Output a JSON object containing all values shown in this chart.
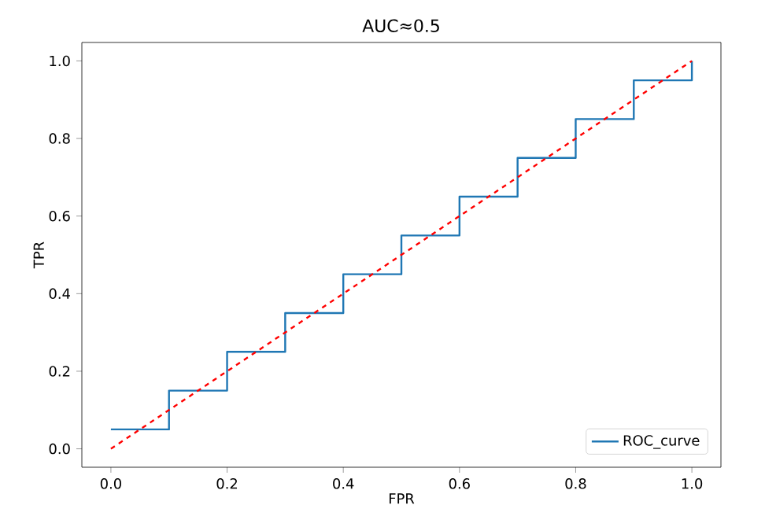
{
  "chart_data": {
    "type": "line",
    "title": "AUC≈0.5",
    "xlabel": "FPR",
    "ylabel": "TPR",
    "xlim": [
      -0.05,
      1.05
    ],
    "ylim": [
      -0.0475,
      1.0475
    ],
    "xticks": [
      {
        "value": 0,
        "label": "0.0"
      },
      {
        "value": 0.2,
        "label": "0.2"
      },
      {
        "value": 0.4,
        "label": "0.4"
      },
      {
        "value": 0.6,
        "label": "0.6"
      },
      {
        "value": 0.8,
        "label": "0.8"
      },
      {
        "value": 1,
        "label": "1.0"
      }
    ],
    "yticks": [
      {
        "value": 0,
        "label": "0.0"
      },
      {
        "value": 0.2,
        "label": "0.2"
      },
      {
        "value": 0.4,
        "label": "0.4"
      },
      {
        "value": 0.6,
        "label": "0.6"
      },
      {
        "value": 0.8,
        "label": "0.8"
      },
      {
        "value": 1,
        "label": "1.0"
      }
    ],
    "legend": "bottom right",
    "marker": "none",
    "series": [
      {
        "name": "ROC_curve",
        "type": "step",
        "color": "#1f77b4",
        "line_style": "solid",
        "x": [
          0,
          0.1,
          0.2,
          0.3,
          0.4,
          0.5,
          0.6,
          0.7,
          0.8,
          0.9,
          1.0
        ],
        "values": [
          0.05,
          0.15,
          0.25,
          0.35,
          0.45,
          0.55,
          0.65,
          0.75,
          0.85,
          0.95,
          1.0
        ]
      },
      {
        "color": "#ff0000",
        "line_style": "dashed",
        "x": [
          0,
          1
        ],
        "values": [
          0,
          1
        ]
      }
    ]
  }
}
